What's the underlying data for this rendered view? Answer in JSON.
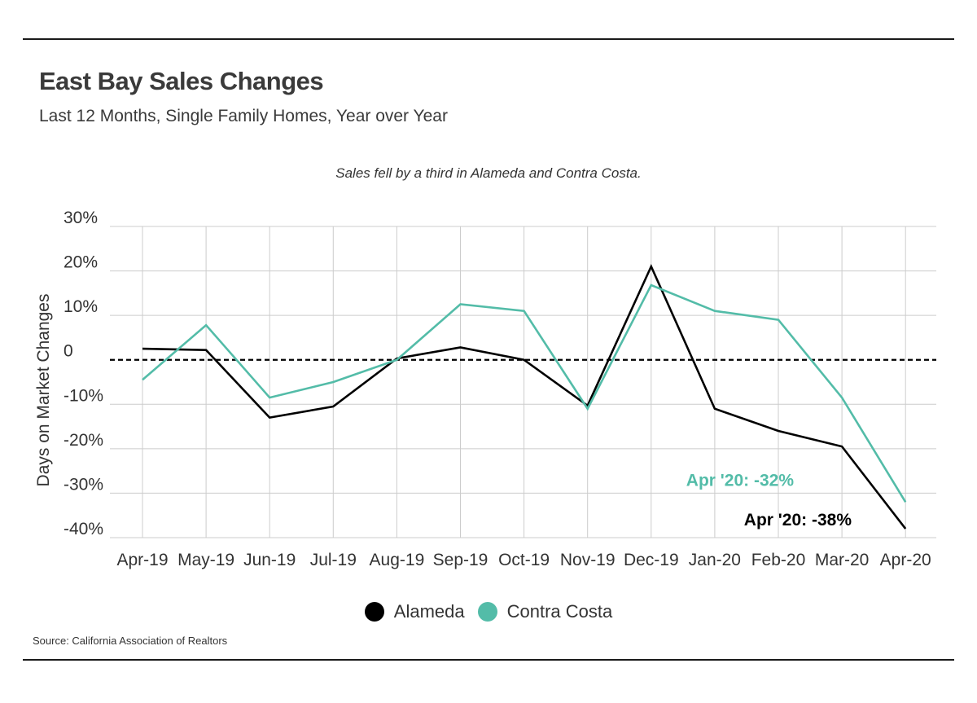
{
  "header": {
    "title": "East Bay Sales Changes",
    "subtitle": "Last 12 Months, Single Family Homes, Year over Year"
  },
  "annotation": "Sales fell by a third in Alameda and Contra Costa.",
  "source": "Source:  California Association of Realtors",
  "chart_data": {
    "type": "line",
    "ylabel": "Days on Market Changes",
    "xlabel": "",
    "ylim": [
      -40,
      30
    ],
    "yticks": [
      30,
      20,
      10,
      0,
      -10,
      -20,
      -30,
      -40
    ],
    "ytick_labels": [
      "30%",
      "20%",
      "10%",
      "0",
      "-10%",
      "-20%",
      "-30%",
      "-40%"
    ],
    "categories": [
      "Apr-19",
      "May-19",
      "Jun-19",
      "Jul-19",
      "Aug-19",
      "Sep-19",
      "Oct-19",
      "Nov-19",
      "Dec-19",
      "Jan-20",
      "Feb-20",
      "Mar-20",
      "Apr-20"
    ],
    "grid": true,
    "zero_line": "dashed",
    "legend_position": "bottom",
    "series": [
      {
        "name": "Alameda",
        "color": "#000000",
        "values": [
          2.5,
          2.2,
          -13,
          -10.5,
          0.3,
          2.8,
          0,
          -10.3,
          21,
          -11,
          -16,
          -19.5,
          -38
        ]
      },
      {
        "name": "Contra Costa",
        "color": "#53bca8",
        "values": [
          -4.5,
          7.8,
          -8.5,
          -5,
          0,
          12.5,
          11,
          -11,
          16.8,
          11,
          9,
          -8.5,
          -32
        ]
      }
    ],
    "data_labels": [
      {
        "series": "Contra Costa",
        "text": "Apr '20: -32%",
        "color": "#53bca8"
      },
      {
        "series": "Alameda",
        "text": "Apr '20: -38%",
        "color": "#000000"
      }
    ]
  }
}
